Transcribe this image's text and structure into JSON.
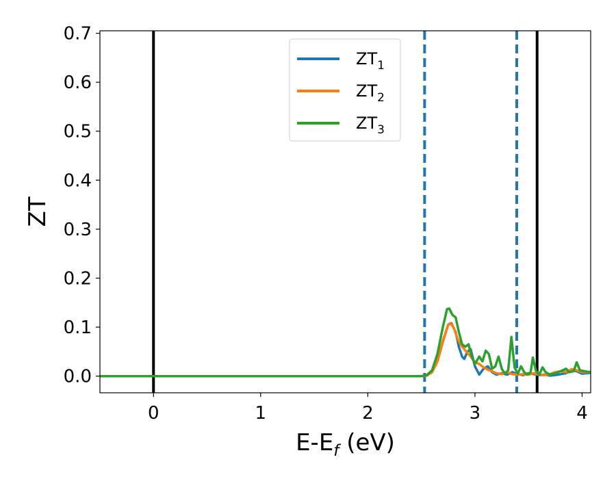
{
  "chart_data": {
    "type": "line",
    "xlabel": {
      "main": "E-E",
      "sub": "f",
      "rest": " (eV)"
    },
    "ylabel": "ZT",
    "xlim": [
      -0.5,
      4.08
    ],
    "ylim": [
      -0.034,
      0.705
    ],
    "xticks": [
      {
        "value": 0,
        "label": "0"
      },
      {
        "value": 1,
        "label": "1"
      },
      {
        "value": 2,
        "label": "2"
      },
      {
        "value": 3,
        "label": "3"
      },
      {
        "value": 4,
        "label": "4"
      }
    ],
    "yticks": [
      {
        "value": 0.0,
        "label": "0.0"
      },
      {
        "value": 0.1,
        "label": "0.1"
      },
      {
        "value": 0.2,
        "label": "0.2"
      },
      {
        "value": 0.3,
        "label": "0.3"
      },
      {
        "value": 0.4,
        "label": "0.4"
      },
      {
        "value": 0.5,
        "label": "0.5"
      },
      {
        "value": 0.6,
        "label": "0.6"
      },
      {
        "value": 0.7,
        "label": "0.7"
      }
    ],
    "grid": false,
    "legend_position": "top-center",
    "vlines": [
      {
        "x": 0.0,
        "color": "#000000",
        "style": "solid"
      },
      {
        "x": 3.58,
        "color": "#000000",
        "style": "solid"
      },
      {
        "x": 2.53,
        "color": "#1f77b4",
        "style": "dashed"
      },
      {
        "x": 3.39,
        "color": "#1f77b4",
        "style": "dashed"
      }
    ],
    "series": [
      {
        "name": "ZT",
        "sub": "1",
        "color": "#1f77b4",
        "points": [
          [
            -0.5,
            0
          ],
          [
            2.5,
            0
          ],
          [
            2.55,
            0.001
          ],
          [
            2.6,
            0.008
          ],
          [
            2.65,
            0.03
          ],
          [
            2.7,
            0.07
          ],
          [
            2.75,
            0.105
          ],
          [
            2.78,
            0.108
          ],
          [
            2.82,
            0.09
          ],
          [
            2.85,
            0.06
          ],
          [
            2.88,
            0.04
          ],
          [
            2.9,
            0.035
          ],
          [
            2.93,
            0.05
          ],
          [
            2.96,
            0.055
          ],
          [
            3.0,
            0.02
          ],
          [
            3.04,
            0.003
          ],
          [
            3.08,
            0.015
          ],
          [
            3.12,
            0.02
          ],
          [
            3.16,
            0.008
          ],
          [
            3.2,
            0.003
          ],
          [
            3.25,
            0.006
          ],
          [
            3.3,
            0.003
          ],
          [
            3.35,
            0.008
          ],
          [
            3.4,
            0.004
          ],
          [
            3.45,
            0.002
          ],
          [
            3.5,
            0.006
          ],
          [
            3.55,
            0.004
          ],
          [
            3.6,
            0.002
          ],
          [
            3.65,
            0.003
          ],
          [
            3.7,
            0.001
          ],
          [
            3.75,
            0.002
          ],
          [
            3.8,
            0.004
          ],
          [
            3.85,
            0.006
          ],
          [
            3.9,
            0.012
          ],
          [
            3.95,
            0.01
          ],
          [
            4.0,
            0.005
          ],
          [
            4.08,
            0.007
          ]
        ]
      },
      {
        "name": "ZT",
        "sub": "2",
        "color": "#ff7f0e",
        "points": [
          [
            -0.5,
            0
          ],
          [
            2.5,
            0
          ],
          [
            2.55,
            0.001
          ],
          [
            2.6,
            0.008
          ],
          [
            2.65,
            0.03
          ],
          [
            2.7,
            0.072
          ],
          [
            2.75,
            0.105
          ],
          [
            2.77,
            0.108
          ],
          [
            2.8,
            0.1
          ],
          [
            2.84,
            0.075
          ],
          [
            2.88,
            0.06
          ],
          [
            2.92,
            0.05
          ],
          [
            2.96,
            0.04
          ],
          [
            3.0,
            0.028
          ],
          [
            3.04,
            0.025
          ],
          [
            3.08,
            0.018
          ],
          [
            3.12,
            0.013
          ],
          [
            3.16,
            0.01
          ],
          [
            3.2,
            0.006
          ],
          [
            3.25,
            0.004
          ],
          [
            3.3,
            0.008
          ],
          [
            3.35,
            0.004
          ],
          [
            3.4,
            0.003
          ],
          [
            3.45,
            0.004
          ],
          [
            3.5,
            0.003
          ],
          [
            3.55,
            0.006
          ],
          [
            3.6,
            0.003
          ],
          [
            3.65,
            0.002
          ],
          [
            3.7,
            0.004
          ],
          [
            3.75,
            0.008
          ],
          [
            3.8,
            0.01
          ],
          [
            3.85,
            0.008
          ],
          [
            3.9,
            0.014
          ],
          [
            3.95,
            0.012
          ],
          [
            4.0,
            0.008
          ],
          [
            4.08,
            0.008
          ]
        ]
      },
      {
        "name": "ZT",
        "sub": "3",
        "color": "#2ca02c",
        "points": [
          [
            -0.5,
            0
          ],
          [
            2.5,
            0
          ],
          [
            2.55,
            0.002
          ],
          [
            2.6,
            0.012
          ],
          [
            2.65,
            0.045
          ],
          [
            2.7,
            0.1
          ],
          [
            2.74,
            0.137
          ],
          [
            2.76,
            0.138
          ],
          [
            2.79,
            0.125
          ],
          [
            2.82,
            0.12
          ],
          [
            2.85,
            0.09
          ],
          [
            2.88,
            0.065
          ],
          [
            2.91,
            0.06
          ],
          [
            2.94,
            0.065
          ],
          [
            2.97,
            0.04
          ],
          [
            3.0,
            0.025
          ],
          [
            3.04,
            0.04
          ],
          [
            3.07,
            0.03
          ],
          [
            3.1,
            0.052
          ],
          [
            3.13,
            0.045
          ],
          [
            3.16,
            0.015
          ],
          [
            3.19,
            0.02
          ],
          [
            3.22,
            0.04
          ],
          [
            3.25,
            0.015
          ],
          [
            3.28,
            0.005
          ],
          [
            3.31,
            0.012
          ],
          [
            3.34,
            0.08
          ],
          [
            3.37,
            0.018
          ],
          [
            3.4,
            0.005
          ],
          [
            3.43,
            0.02
          ],
          [
            3.46,
            0.008
          ],
          [
            3.49,
            0.003
          ],
          [
            3.52,
            0.008
          ],
          [
            3.54,
            0.038
          ],
          [
            3.57,
            0.01
          ],
          [
            3.6,
            0.003
          ],
          [
            3.63,
            0.018
          ],
          [
            3.66,
            0.008
          ],
          [
            3.7,
            0.003
          ],
          [
            3.75,
            0.006
          ],
          [
            3.8,
            0.01
          ],
          [
            3.85,
            0.015
          ],
          [
            3.88,
            0.008
          ],
          [
            3.92,
            0.01
          ],
          [
            3.95,
            0.028
          ],
          [
            3.98,
            0.012
          ],
          [
            4.02,
            0.01
          ],
          [
            4.08,
            0.008
          ]
        ]
      }
    ]
  }
}
